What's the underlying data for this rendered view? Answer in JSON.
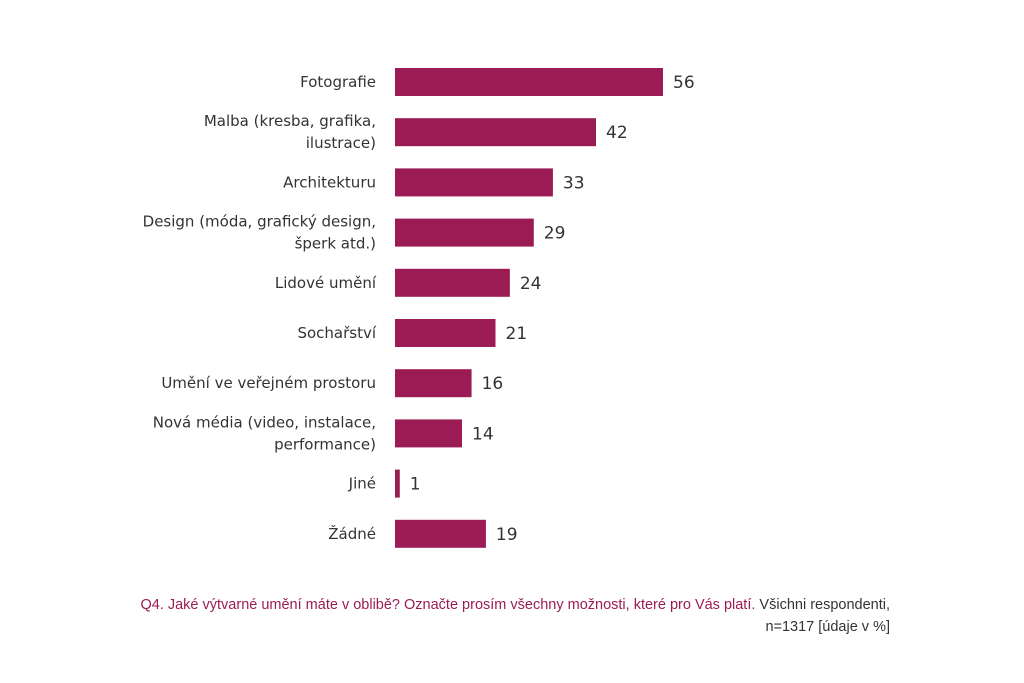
{
  "chart_data": {
    "type": "bar",
    "orientation": "horizontal",
    "categories": [
      [
        "Fotografie"
      ],
      [
        "Malba (kresba, grafika,",
        "ilustrace)"
      ],
      [
        "Architekturu"
      ],
      [
        "Design (móda, grafický design,",
        "šperk atd.)"
      ],
      [
        "Lidové umění"
      ],
      [
        "Sochařství"
      ],
      [
        "Umění ve veřejném prostoru"
      ],
      [
        "Nová média (video, instalace,",
        "performance)"
      ],
      [
        "Jiné"
      ],
      [
        "Žádné"
      ]
    ],
    "values": [
      56,
      42,
      33,
      29,
      24,
      21,
      16,
      14,
      1,
      19
    ],
    "xlim": [
      0,
      56
    ],
    "grid": false,
    "bar_color": "#9b1c54"
  },
  "footer": {
    "question": "Q4. Jaké výtvarné umění máte v oblibě? Označte prosím všechny možnosti, které pro Vás platí.",
    "note": "Všichni respondenti, n=1317 [údaje v %]"
  }
}
